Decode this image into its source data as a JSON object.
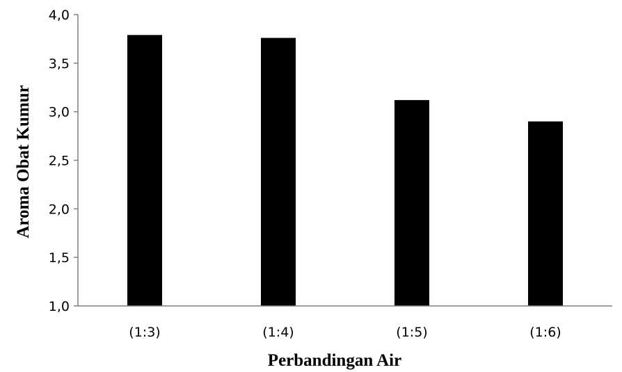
{
  "chart_data": {
    "type": "bar",
    "title": "",
    "xlabel": "Perbandingan Air",
    "ylabel": "Aroma Obat Kumur",
    "categories": [
      "(1:3)",
      "(1:4)",
      "(1:5)",
      "(1:6)"
    ],
    "values": [
      3.79,
      3.76,
      3.12,
      2.9
    ],
    "ylim": [
      1.0,
      4.0
    ],
    "yticks": [
      "1,0",
      "1,5",
      "2,0",
      "2,5",
      "3,0",
      "3,5",
      "4,0"
    ],
    "grid": false,
    "legend": "none",
    "bar_color": "#000000",
    "axis_color": "#7f7f7f"
  }
}
